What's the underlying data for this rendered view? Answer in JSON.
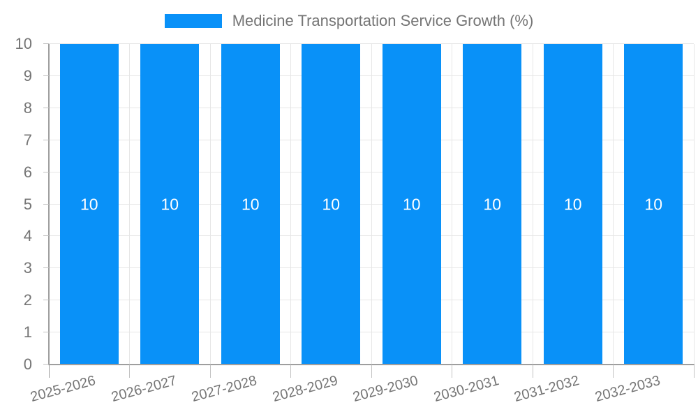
{
  "chart_data": {
    "type": "bar",
    "title": "Medicine Transportation Service Growth (%)",
    "categories": [
      "2025-2026",
      "2026-2027",
      "2027-2028",
      "2028-2029",
      "2029-2030",
      "2030-2031",
      "2031-2032",
      "2032-2033"
    ],
    "values": [
      10,
      10,
      10,
      10,
      10,
      10,
      10,
      10
    ],
    "value_labels": [
      "10",
      "10",
      "10",
      "10",
      "10",
      "10",
      "10",
      "10"
    ],
    "xlabel": "",
    "ylabel": "",
    "ylim": [
      0,
      10
    ],
    "ytick_labels": [
      "0",
      "1",
      "2",
      "3",
      "4",
      "5",
      "6",
      "7",
      "8",
      "9",
      "10"
    ],
    "grid": true,
    "legend_position": "top-center",
    "colors": {
      "bar": "#0991f8",
      "grid": "#e6e6e6",
      "axis": "#9e9e9e",
      "tick": "#c2c2c2",
      "axis_text": "#757575",
      "value_label": "#ffffff"
    }
  }
}
